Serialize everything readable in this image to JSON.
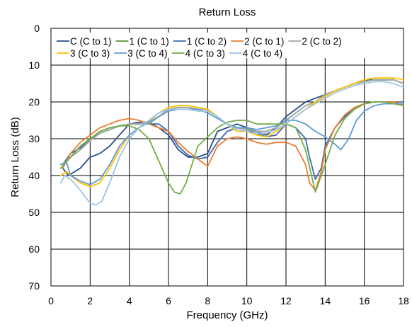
{
  "chart_data": {
    "type": "line",
    "title": "Return Loss",
    "xlabel": "Frequency (GHz)",
    "ylabel": "Return Loss (dB)",
    "xlim": [
      0,
      18
    ],
    "ylim": [
      0,
      70
    ],
    "y_inverted": true,
    "x_ticks": [
      0,
      2,
      4,
      6,
      8,
      10,
      12,
      14,
      16,
      18
    ],
    "y_ticks": [
      0,
      10,
      20,
      30,
      40,
      50,
      60,
      70
    ],
    "grid": true,
    "legend_position": "top",
    "series": [
      {
        "name": "C (C to 1)",
        "color": "#2b4d8f",
        "x": [
          0.6,
          0.9,
          1.5,
          2.0,
          2.5,
          3.0,
          3.5,
          4.0,
          4.5,
          5.0,
          5.5,
          6.0,
          6.5,
          7.0,
          7.5,
          8.0,
          8.5,
          9.0,
          9.5,
          10.0,
          10.5,
          11.0,
          11.5,
          12.0,
          12.5,
          13.0,
          13.5,
          14.0,
          14.5,
          15.0,
          15.5,
          16.0,
          16.5,
          17.0,
          17.5,
          18.0
        ],
        "y": [
          38,
          40,
          38,
          35,
          34,
          32,
          29,
          26,
          25.5,
          25.5,
          27,
          29,
          33,
          35,
          35,
          34,
          28,
          27,
          26,
          27,
          28,
          29,
          27,
          24,
          22,
          20,
          19,
          18,
          17,
          16,
          15,
          14,
          14,
          14,
          14,
          15
        ]
      },
      {
        "name": "1 (C to 1)",
        "color": "#5f9a3c",
        "x": [
          0.6,
          1.0,
          1.5,
          2.0,
          2.5,
          3.0,
          3.5,
          4.0,
          4.5,
          5.0,
          5.5,
          6.0,
          6.5,
          7.0,
          7.5,
          8.0,
          8.5,
          9.0,
          9.5,
          10.0,
          10.5,
          11.0,
          11.5,
          12.0,
          12.5,
          13.0,
          13.5,
          14.0,
          14.5,
          15.0,
          15.5,
          16.0,
          16.5,
          17.0,
          17.5,
          18.0
        ],
        "y": [
          37,
          35,
          33,
          30.5,
          28.5,
          27.5,
          26.5,
          26,
          26,
          26,
          24,
          22,
          21.5,
          21.5,
          22,
          22,
          24,
          26,
          27,
          27,
          28,
          28,
          27,
          25,
          23,
          21,
          20,
          18,
          17,
          16,
          15,
          14.5,
          14,
          14,
          14,
          15
        ]
      },
      {
        "name": "1 (C to 2)",
        "color": "#3a69b2",
        "x": [
          0.6,
          1.0,
          1.5,
          2.0,
          2.5,
          3.0,
          3.5,
          4.0,
          4.5,
          5.0,
          5.5,
          6.0,
          6.5,
          7.0,
          7.5,
          8.0,
          8.5,
          9.0,
          9.5,
          10.0,
          10.5,
          11.0,
          11.5,
          12.0,
          12.5,
          13.0,
          13.2,
          13.5,
          13.8,
          14.0,
          14.5,
          15.0,
          15.5,
          16.0,
          16.5,
          17.0,
          17.5,
          18.0
        ],
        "y": [
          37,
          34,
          32.5,
          30,
          28.5,
          27.5,
          26.5,
          26,
          26,
          26,
          26,
          28,
          32,
          34.5,
          35.5,
          35,
          31,
          28,
          27,
          27.5,
          28.5,
          29.5,
          29,
          26,
          27,
          30,
          35,
          41,
          38,
          32,
          27,
          24,
          21.5,
          20.5,
          20,
          20,
          20,
          21
        ]
      },
      {
        "name": "2 (C to 1)",
        "color": "#ed7d31",
        "x": [
          0.6,
          1.0,
          1.5,
          2.0,
          2.5,
          3.0,
          3.5,
          4.0,
          4.5,
          5.0,
          5.5,
          6.0,
          6.5,
          7.0,
          7.5,
          8.0,
          8.5,
          9.0,
          9.5,
          10.0,
          10.5,
          11.0,
          11.5,
          12.0,
          12.5,
          13.0,
          13.2,
          13.5,
          13.8,
          14.0,
          14.5,
          15.0,
          15.5,
          16.0,
          16.5,
          17.0,
          17.5,
          18.0
        ],
        "y": [
          38,
          34,
          31,
          29,
          27,
          26,
          25,
          24.5,
          25,
          26,
          27,
          28,
          31,
          33.5,
          35.5,
          37.5,
          32,
          30,
          29.5,
          30,
          31,
          31.5,
          31,
          31,
          32,
          37,
          42,
          44,
          39,
          33,
          27,
          23.5,
          21.5,
          20.5,
          20,
          20,
          20,
          21
        ]
      },
      {
        "name": "2 (C to 2)",
        "color": "#a5a5a5",
        "x": [
          0.6,
          1.0,
          1.5,
          2.0,
          2.5,
          3.0,
          3.5,
          4.0,
          4.5,
          5.0,
          5.5,
          6.0,
          6.5,
          7.0,
          7.5,
          8.0,
          8.5,
          9.0,
          9.5,
          10.0,
          10.5,
          11.0,
          11.5,
          12.0,
          12.5,
          13.0,
          13.5,
          14.0,
          14.5,
          15.0,
          15.5,
          16.0,
          16.5,
          17.0,
          17.5,
          18.0
        ],
        "y": [
          37,
          35,
          33,
          30.5,
          28.5,
          27.5,
          26.5,
          26,
          26,
          26,
          24,
          22,
          21.5,
          21.5,
          22,
          22,
          24,
          26,
          27,
          27.5,
          28,
          28,
          27,
          25,
          23,
          21,
          20,
          18,
          17,
          16,
          15,
          14.5,
          14,
          14,
          14,
          15
        ]
      },
      {
        "name": "3 (C to 3)",
        "color": "#ffc000",
        "x": [
          0.5,
          0.8,
          1.0,
          1.5,
          2.0,
          2.5,
          3.0,
          3.5,
          4.0,
          4.5,
          5.0,
          5.5,
          6.0,
          6.5,
          7.0,
          7.5,
          8.0,
          8.5,
          9.0,
          9.5,
          10.0,
          10.5,
          11.0,
          11.5,
          12.0,
          12.5,
          13.0,
          13.5,
          14.0,
          14.5,
          15.0,
          15.5,
          16.0,
          16.5,
          17.0,
          17.5,
          18.0
        ],
        "y": [
          40,
          39,
          40,
          42,
          43,
          42,
          38,
          33,
          29,
          27,
          25.5,
          23,
          21.5,
          21,
          21,
          21.5,
          22,
          24,
          26,
          28,
          28,
          29,
          29.5,
          28,
          26,
          24,
          22,
          20,
          18.5,
          17,
          16,
          15,
          14,
          13.5,
          13.5,
          13.5,
          14
        ]
      },
      {
        "name": "3 (C to 4)",
        "color": "#5b9bd5",
        "x": [
          0.5,
          0.8,
          1.0,
          1.5,
          2.0,
          2.5,
          3.0,
          3.5,
          4.0,
          4.5,
          5.0,
          5.5,
          6.0,
          6.5,
          7.0,
          7.5,
          8.0,
          8.5,
          9.0,
          9.5,
          10.0,
          10.5,
          11.0,
          11.5,
          12.0,
          12.5,
          13.0,
          13.5,
          14.0,
          14.5,
          14.8,
          15.2,
          15.6,
          16.0,
          16.5,
          17.0,
          17.5,
          18.0
        ],
        "y": [
          37,
          36.5,
          40,
          41.5,
          42.5,
          41,
          37,
          32,
          29,
          27,
          25.5,
          24,
          22.5,
          22,
          22,
          22,
          23,
          24.5,
          26,
          27,
          27,
          27.5,
          27,
          26.5,
          25,
          25,
          26,
          28,
          29.5,
          31.5,
          33,
          30,
          25,
          22.5,
          21,
          20.5,
          20.5,
          20.5
        ]
      },
      {
        "name": "4 (C to 3)",
        "color": "#70ad47",
        "x": [
          0.5,
          1.0,
          1.5,
          2.0,
          2.5,
          3.0,
          3.5,
          4.0,
          4.5,
          5.0,
          5.5,
          6.0,
          6.3,
          6.6,
          6.9,
          7.2,
          7.5,
          8.0,
          8.5,
          9.0,
          9.5,
          10.0,
          10.5,
          11.0,
          11.5,
          12.0,
          12.5,
          13.0,
          13.5,
          14.0,
          14.5,
          15.0,
          15.5,
          16.0,
          16.5,
          17.0,
          17.5,
          18.0
        ],
        "y": [
          38,
          35,
          32,
          30,
          28,
          27,
          26.5,
          26.5,
          27.5,
          30,
          36,
          42,
          44.5,
          45,
          42,
          37,
          32,
          29.5,
          27,
          25.5,
          25,
          25,
          26,
          26,
          26,
          26,
          27,
          33,
          44.5,
          37,
          29,
          24.5,
          22,
          20.5,
          20,
          20,
          20.5,
          21
        ]
      },
      {
        "name": "4 (C to 4)",
        "color": "#9dc3e6",
        "x": [
          0.5,
          0.7,
          1.0,
          1.5,
          2.0,
          2.3,
          2.6,
          3.0,
          3.5,
          4.0,
          4.5,
          5.0,
          5.5,
          6.0,
          6.5,
          7.0,
          7.5,
          8.0,
          8.5,
          9.0,
          9.5,
          10.0,
          10.5,
          11.0,
          11.5,
          12.0,
          12.5,
          13.0,
          13.5,
          14.0,
          14.5,
          15.0,
          15.5,
          16.0,
          16.5,
          17.0,
          17.5,
          18.0
        ],
        "y": [
          42,
          40,
          41,
          44,
          47.5,
          48,
          47,
          42,
          35,
          30,
          27,
          25,
          23,
          22,
          22,
          22,
          22.5,
          22.5,
          24,
          26,
          27.5,
          28,
          28.5,
          28.5,
          27.5,
          26,
          24,
          22,
          20.5,
          19,
          17.5,
          16.5,
          15.5,
          15,
          14.5,
          14.5,
          15,
          16
        ]
      }
    ]
  }
}
